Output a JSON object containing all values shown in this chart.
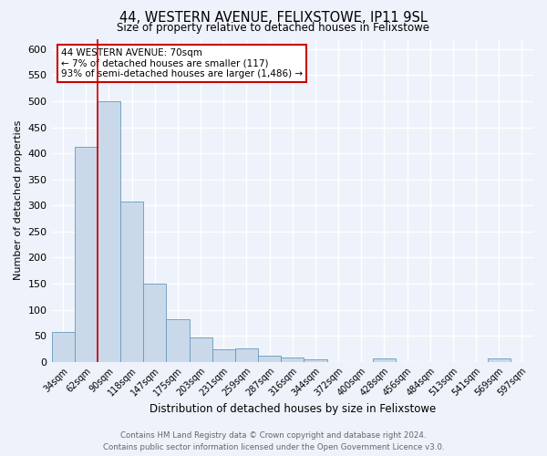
{
  "title": "44, WESTERN AVENUE, FELIXSTOWE, IP11 9SL",
  "subtitle": "Size of property relative to detached houses in Felixstowe",
  "xlabel": "Distribution of detached houses by size in Felixstowe",
  "ylabel": "Number of detached properties",
  "bar_labels": [
    "34sqm",
    "62sqm",
    "90sqm",
    "118sqm",
    "147sqm",
    "175sqm",
    "203sqm",
    "231sqm",
    "259sqm",
    "287sqm",
    "316sqm",
    "344sqm",
    "372sqm",
    "400sqm",
    "428sqm",
    "456sqm",
    "484sqm",
    "513sqm",
    "541sqm",
    "569sqm",
    "597sqm"
  ],
  "bar_values": [
    57,
    412,
    500,
    307,
    150,
    82,
    46,
    24,
    25,
    11,
    8,
    5,
    0,
    0,
    6,
    0,
    0,
    0,
    0,
    6,
    0
  ],
  "bar_color": "#c9d9ea",
  "bar_edge_color": "#6699bb",
  "background_color": "#eef2fa",
  "grid_color": "#ffffff",
  "red_line_x": 1.5,
  "annotation_text": "44 WESTERN AVENUE: 70sqm\n← 7% of detached houses are smaller (117)\n93% of semi-detached houses are larger (1,486) →",
  "annotation_box_color": "#ffffff",
  "annotation_box_edge_color": "#cc0000",
  "ylim": [
    0,
    620
  ],
  "yticks": [
    0,
    50,
    100,
    150,
    200,
    250,
    300,
    350,
    400,
    450,
    500,
    550,
    600
  ],
  "footer_line1": "Contains HM Land Registry data © Crown copyright and database right 2024.",
  "footer_line2": "Contains public sector information licensed under the Open Government Licence v3.0."
}
